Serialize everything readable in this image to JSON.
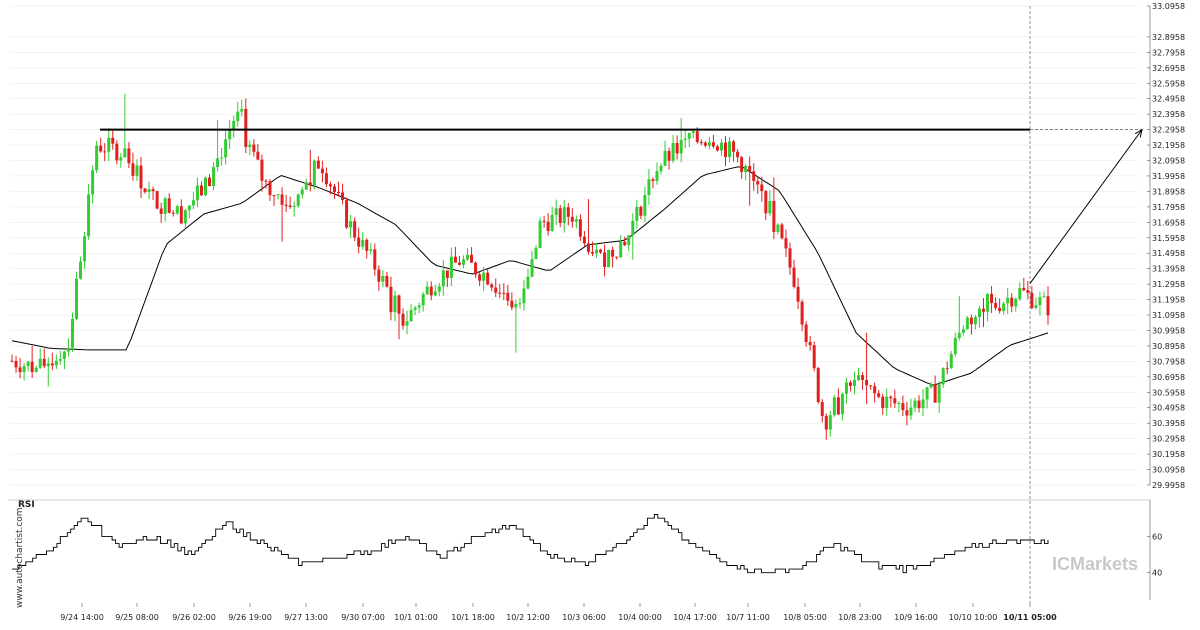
{
  "watermark": "www.autochartist.com",
  "brand": "ICMarkets",
  "colors": {
    "bull": "#33cc33",
    "bear": "#e02020",
    "line": "#000000",
    "grid": "#e6e6e6"
  },
  "chart_data": [
    {
      "type": "candlestick",
      "title": "",
      "ylim": [
        29.9958,
        33.0958
      ],
      "y_ticks": [
        "33.0958",
        "32.8958",
        "32.7958",
        "32.6958",
        "32.5958",
        "32.4958",
        "32.3958",
        "32.2958",
        "32.1958",
        "32.0958",
        "31.9958",
        "31.8958",
        "31.7958",
        "31.6958",
        "31.5958",
        "31.4958",
        "31.3958",
        "31.2958",
        "31.1958",
        "31.0958",
        "30.9958",
        "30.8958",
        "30.7958",
        "30.6958",
        "30.5958",
        "30.4958",
        "30.3958",
        "30.2958",
        "30.1958",
        "30.0958",
        "29.9958"
      ],
      "x_ticks": [
        "9/24 14:00",
        "9/25 08:00",
        "9/26 02:00",
        "9/26 19:00",
        "9/27 13:00",
        "9/30 07:00",
        "10/1 01:00",
        "10/1 18:00",
        "10/2 12:00",
        "10/3 06:00",
        "10/4 00:00",
        "10/4 17:00",
        "10/7 11:00",
        "10/8 05:00",
        "10/8 23:00",
        "10/9 16:00",
        "10/10 10:00",
        "10/11 05:00"
      ],
      "current_time_label": "10/11 05:00",
      "resistance_level": 32.2958,
      "moving_average_key_points": [
        30.93,
        30.88,
        30.87,
        30.87,
        31.55,
        31.75,
        31.82,
        32.0,
        31.92,
        31.82,
        31.68,
        31.42,
        31.36,
        31.45,
        31.38,
        31.55,
        31.58,
        31.78,
        32.0,
        32.06,
        31.9,
        31.5,
        30.98,
        30.75,
        30.64,
        30.72,
        30.9,
        30.98
      ],
      "price_key_points": [
        30.8,
        30.75,
        30.9,
        32.2,
        32.15,
        31.85,
        31.75,
        31.95,
        32.4,
        31.95,
        31.8,
        32.1,
        31.7,
        31.4,
        31.05,
        31.3,
        31.45,
        31.35,
        31.15,
        31.7,
        31.75,
        31.45,
        31.6,
        32.05,
        32.2,
        32.25,
        32.1,
        31.8,
        31.3,
        30.4,
        30.7,
        30.55,
        30.5,
        30.6,
        31.05,
        31.15,
        31.25,
        31.15
      ],
      "forecast_target": 32.2958
    },
    {
      "type": "line",
      "title": "RSI",
      "ylim": [
        25,
        80
      ],
      "y_ticks": [
        60,
        40
      ],
      "key_points": [
        42,
        52,
        70,
        55,
        60,
        50,
        67,
        56,
        45,
        48,
        52,
        60,
        48,
        60,
        66,
        50,
        45,
        56,
        72,
        55,
        45,
        40,
        42,
        56,
        45,
        42,
        48,
        55,
        58,
        57
      ]
    }
  ]
}
